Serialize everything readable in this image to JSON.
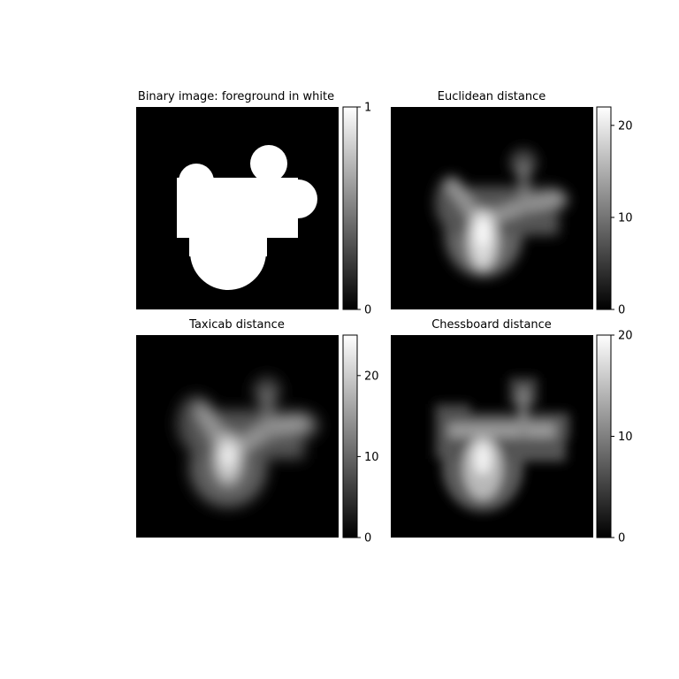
{
  "chart_data": [
    {
      "type": "heatmap",
      "title": "Binary image: foreground in white",
      "colormap": "gray",
      "colorbar": {
        "min": 0,
        "max": 1,
        "ticks": [
          0,
          1
        ]
      },
      "grid": false
    },
    {
      "type": "heatmap",
      "title": "Euclidean distance",
      "colormap": "gray",
      "colorbar": {
        "min": 0,
        "max": 22,
        "ticks": [
          0,
          10,
          20
        ]
      },
      "grid": false
    },
    {
      "type": "heatmap",
      "title": "Taxicab distance",
      "colormap": "gray",
      "colorbar": {
        "min": 0,
        "max": 25,
        "ticks": [
          0,
          10,
          20
        ]
      },
      "grid": false
    },
    {
      "type": "heatmap",
      "title": "Chessboard distance",
      "colormap": "gray",
      "colorbar": {
        "min": 0,
        "max": 20,
        "ticks": [
          0,
          10,
          20
        ]
      },
      "grid": false
    }
  ]
}
